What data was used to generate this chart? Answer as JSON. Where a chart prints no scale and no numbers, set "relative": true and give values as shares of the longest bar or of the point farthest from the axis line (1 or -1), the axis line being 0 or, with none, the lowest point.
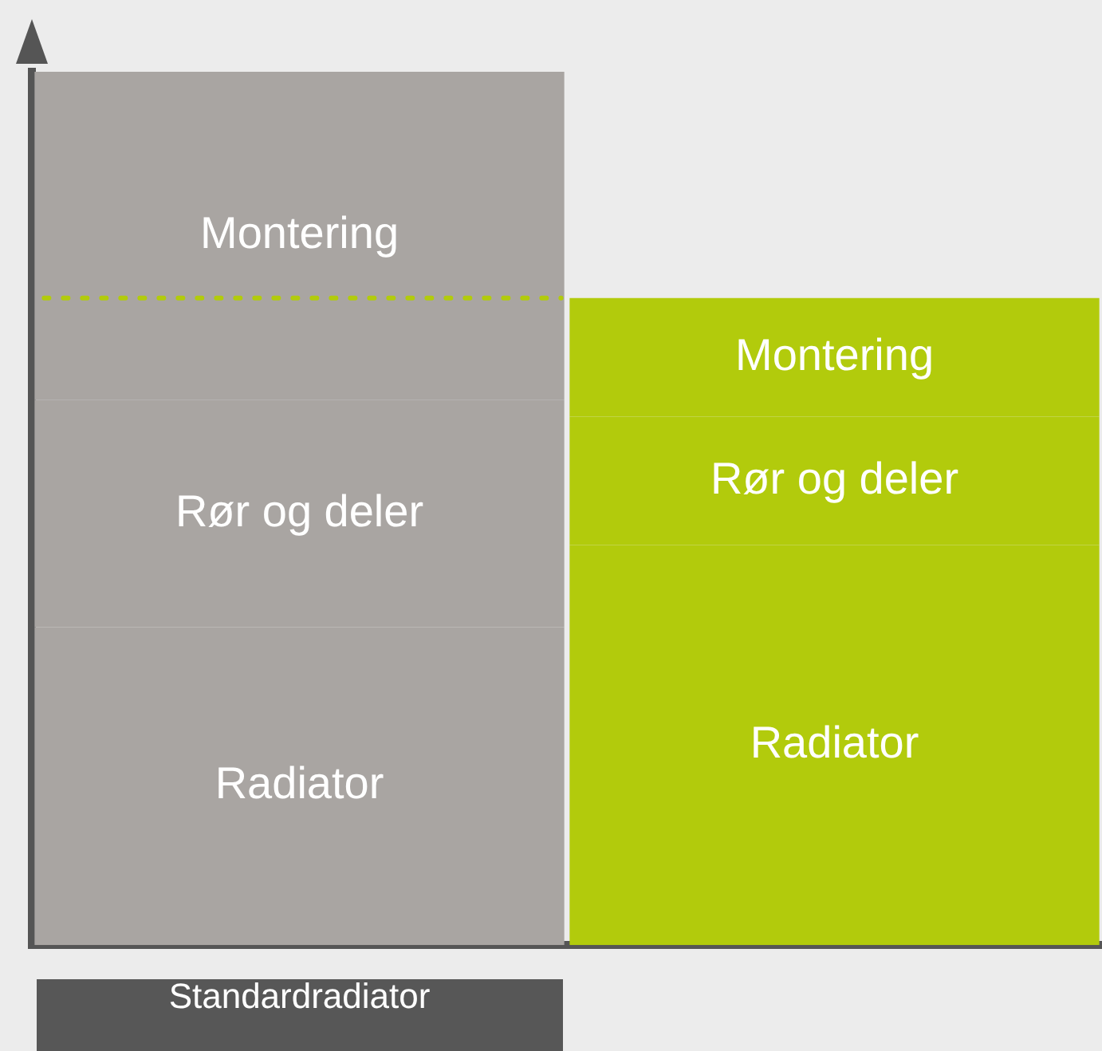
{
  "chart_data": {
    "type": "bar",
    "stacked": true,
    "relative": true,
    "categories": [
      "Standardradiator",
      null
    ],
    "series": [
      {
        "name": "Radiator",
        "colors": [
          "#a9a5a2",
          "#b2cb0c"
        ],
        "values": [
          0.364,
          0.458
        ]
      },
      {
        "name": "Rør og deler",
        "colors": [
          "#a9a5a2",
          "#b2cb0c"
        ],
        "values": [
          0.26,
          0.147
        ]
      },
      {
        "name": "Montering",
        "colors": [
          "#a9a5a2",
          "#b2cb0c"
        ],
        "values": [
          0.376,
          0.136
        ]
      }
    ],
    "ref_lines": [
      {
        "axis": "y",
        "value": 0.741,
        "color": "#b2cb0c",
        "line_style": "dotted"
      }
    ],
    "grid": false,
    "legend": false
  }
}
